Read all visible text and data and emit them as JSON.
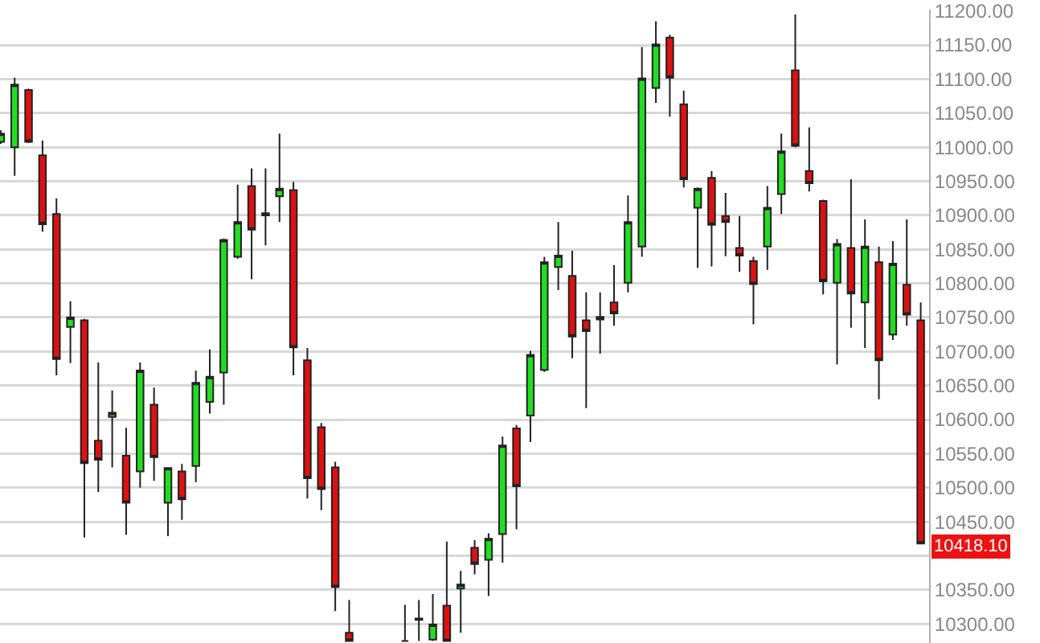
{
  "chart_data": {
    "type": "candlestick",
    "categories": [
      null,
      null,
      null,
      null,
      null,
      null,
      null,
      null,
      null,
      null,
      null,
      null,
      null,
      null,
      null,
      null,
      null,
      null,
      null,
      null,
      null,
      null,
      null,
      null,
      null,
      null,
      null,
      null,
      null,
      null,
      null,
      null,
      null,
      null,
      null,
      null,
      null,
      null,
      null,
      null,
      null,
      null,
      null,
      null,
      null,
      null,
      null,
      null,
      null,
      null,
      null,
      null,
      null,
      null,
      null,
      null,
      null,
      null,
      null,
      null,
      null,
      null,
      null,
      null,
      null,
      null,
      null
    ],
    "ohlc": [
      [
        11008,
        11025,
        11005,
        11020
      ],
      [
        11000,
        11102,
        10958,
        11092
      ],
      [
        11084,
        11086,
        11006,
        11008
      ],
      [
        10988,
        11010,
        10876,
        10887
      ],
      [
        10902,
        10925,
        10665,
        10689
      ],
      [
        10736,
        10774,
        10683,
        10750
      ],
      [
        10746,
        10748,
        10427,
        10536
      ],
      [
        10569,
        10684,
        10494,
        10541
      ],
      [
        10604,
        10643,
        10530,
        10610
      ],
      [
        10547,
        10588,
        10431,
        10478
      ],
      [
        10524,
        10684,
        10500,
        10672
      ],
      [
        10622,
        10647,
        10510,
        10545
      ],
      [
        10478,
        10530,
        10429,
        10529
      ],
      [
        10524,
        10535,
        10453,
        10483
      ],
      [
        10532,
        10672,
        10508,
        10654
      ],
      [
        10626,
        10703,
        10609,
        10663
      ],
      [
        10669,
        10866,
        10622,
        10864
      ],
      [
        10839,
        10945,
        10836,
        10890
      ],
      [
        10943,
        10969,
        10806,
        10879
      ],
      [
        10903,
        10969,
        10856,
        10900
      ],
      [
        10928,
        11020,
        10890,
        10939
      ],
      [
        10937,
        10949,
        10665,
        10706
      ],
      [
        10687,
        10705,
        10484,
        10514
      ],
      [
        10589,
        10595,
        10467,
        10498
      ],
      [
        10530,
        10538,
        10319,
        10354
      ],
      [
        10287,
        10335,
        10275,
        10275
      ],
      null,
      null,
      null,
      [
        10275,
        10328,
        10275,
        10275
      ],
      [
        10306,
        10335,
        10275,
        10308
      ],
      [
        10277,
        10344,
        10275,
        10299
      ],
      [
        10327,
        10421,
        10275,
        10275
      ],
      [
        10352,
        10378,
        10287,
        10358
      ],
      [
        10412,
        10423,
        10373,
        10388
      ],
      [
        10394,
        10433,
        10341,
        10425
      ],
      [
        10432,
        10575,
        10390,
        10562
      ],
      [
        10587,
        10592,
        10439,
        10502
      ],
      [
        10606,
        10701,
        10567,
        10695
      ],
      [
        10673,
        10839,
        10670,
        10831
      ],
      [
        10824,
        10890,
        10790,
        10841
      ],
      [
        10811,
        10848,
        10690,
        10722
      ],
      [
        10746,
        10787,
        10617,
        10730
      ],
      [
        10751,
        10787,
        10697,
        10747
      ],
      [
        10772,
        10827,
        10738,
        10756
      ],
      [
        10801,
        10929,
        10787,
        10890
      ],
      [
        10854,
        11147,
        10839,
        11101
      ],
      [
        11087,
        11185,
        11065,
        11151
      ],
      [
        11161,
        11165,
        11045,
        11102
      ],
      [
        11063,
        11083,
        10941,
        10953
      ],
      [
        10911,
        10941,
        10823,
        10939
      ],
      [
        10955,
        10965,
        10825,
        10886
      ],
      [
        10899,
        10933,
        10840,
        10890
      ],
      [
        10852,
        10899,
        10817,
        10841
      ],
      [
        10833,
        10839,
        10740,
        10799
      ],
      [
        10854,
        10943,
        10820,
        10911
      ],
      [
        10931,
        11020,
        10902,
        10994
      ],
      [
        11113,
        11195,
        11000,
        11002
      ],
      [
        10965,
        11029,
        10935,
        10947
      ],
      [
        10921,
        10923,
        10784,
        10803
      ],
      [
        10801,
        10865,
        10681,
        10858
      ],
      [
        10852,
        10953,
        10735,
        10785
      ],
      [
        10772,
        10894,
        10705,
        10854
      ],
      [
        10831,
        10854,
        10630,
        10687
      ],
      [
        10725,
        10862,
        10717,
        10829
      ],
      [
        10798,
        10894,
        10738,
        10754
      ],
      [
        10746,
        10772,
        10418.1,
        10418.1
      ]
    ],
    "ylim": [
      10272,
      11202
    ],
    "yticks": [
      {
        "value": 10300,
        "label": "10300.00"
      },
      {
        "value": 10350,
        "label": "10350.00"
      },
      {
        "value": 10400,
        "label": null
      },
      {
        "value": 10450,
        "label": "10450.00"
      },
      {
        "value": 10500,
        "label": "10500.00"
      },
      {
        "value": 10550,
        "label": "10550.00"
      },
      {
        "value": 10600,
        "label": "10600.00"
      },
      {
        "value": 10650,
        "label": "10650.00"
      },
      {
        "value": 10700,
        "label": "10700.00"
      },
      {
        "value": 10750,
        "label": "10750.00"
      },
      {
        "value": 10800,
        "label": "10800.00"
      },
      {
        "value": 10850,
        "label": "10850.00"
      },
      {
        "value": 10900,
        "label": "10900.00"
      },
      {
        "value": 10950,
        "label": "10950.00"
      },
      {
        "value": 11000,
        "label": "11000.00"
      },
      {
        "value": 11050,
        "label": "11050.00"
      },
      {
        "value": 11100,
        "label": "11100.00"
      },
      {
        "value": 11150,
        "label": "11150.00"
      },
      {
        "value": 11200,
        "label": "11200.00"
      }
    ],
    "annotations": [
      "10418.10"
    ],
    "grid": "y",
    "tick_labels": "y"
  }
}
